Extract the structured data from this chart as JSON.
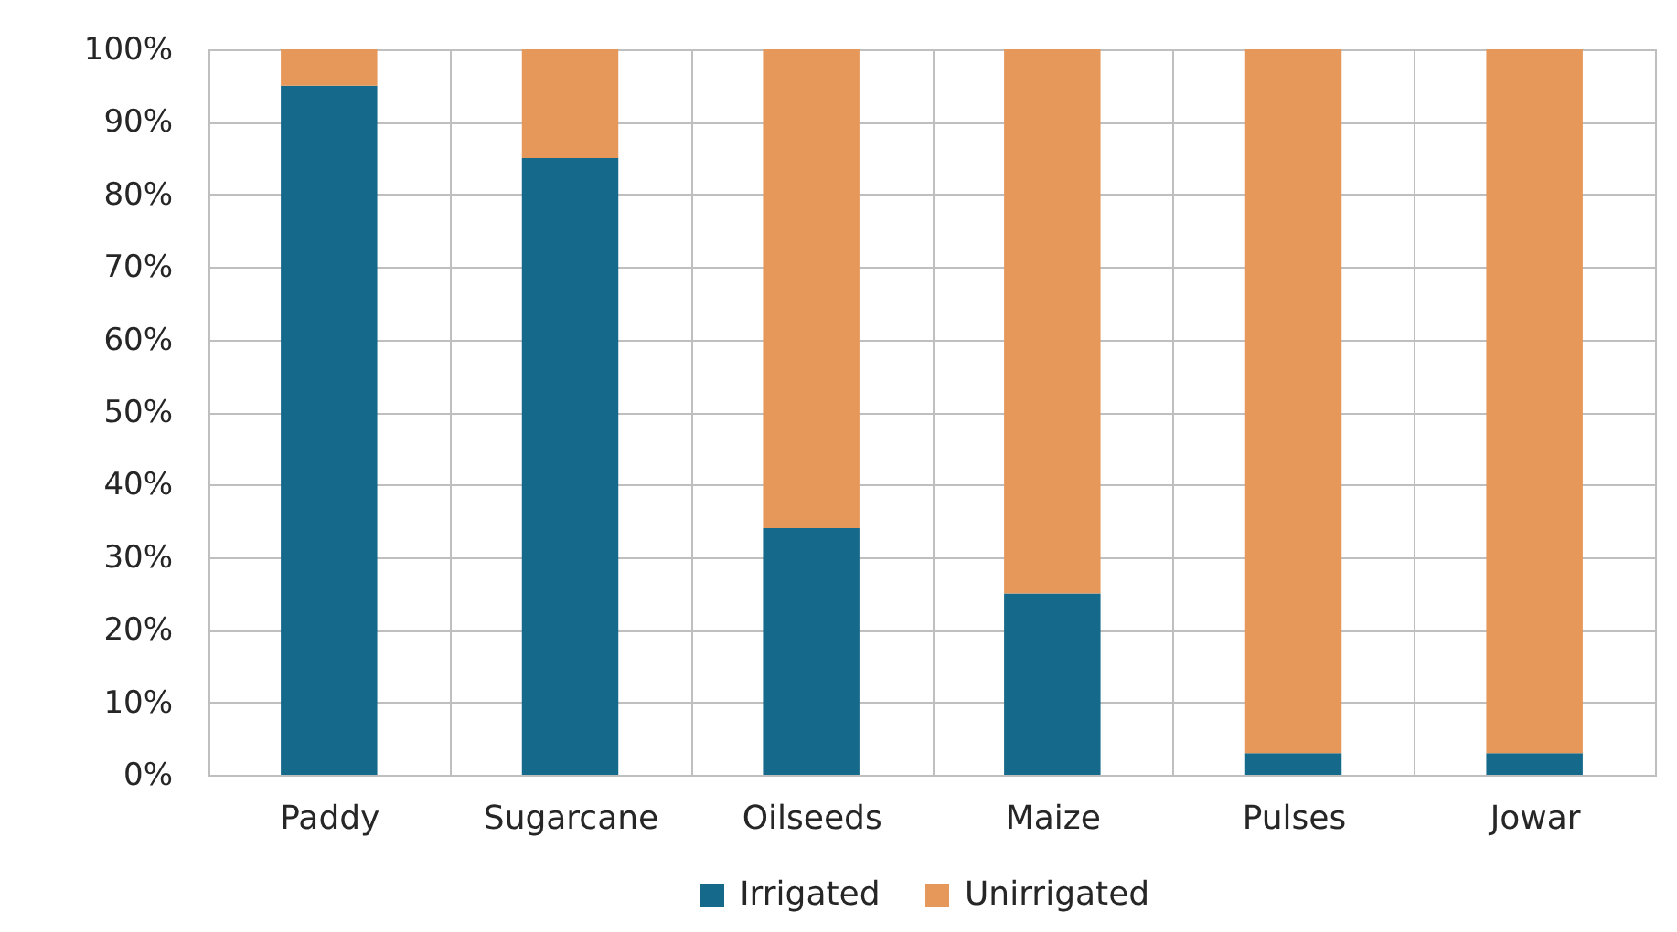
{
  "chart_data": {
    "type": "bar",
    "stacked": true,
    "categories": [
      "Paddy",
      "Sugarcane",
      "Oilseeds",
      "Maize",
      "Pulses",
      "Jowar"
    ],
    "series": [
      {
        "name": "Irrigated",
        "color": "#15698a",
        "values": [
          95,
          85,
          34,
          25,
          3,
          3
        ]
      },
      {
        "name": "Unirrigated",
        "color": "#e6975a",
        "values": [
          5,
          15,
          66,
          75,
          97,
          97
        ]
      }
    ],
    "ylim": [
      0,
      100
    ],
    "yticks": [
      {
        "value": 0,
        "label": "0%"
      },
      {
        "value": 10,
        "label": "10%"
      },
      {
        "value": 20,
        "label": "20%"
      },
      {
        "value": 30,
        "label": "30%"
      },
      {
        "value": 40,
        "label": "40%"
      },
      {
        "value": 50,
        "label": "50%"
      },
      {
        "value": 60,
        "label": "60%"
      },
      {
        "value": 70,
        "label": "70%"
      },
      {
        "value": 80,
        "label": "80%"
      },
      {
        "value": 90,
        "label": "90%"
      },
      {
        "value": 100,
        "label": "100%"
      }
    ],
    "grid": true,
    "legend": "bottom"
  }
}
